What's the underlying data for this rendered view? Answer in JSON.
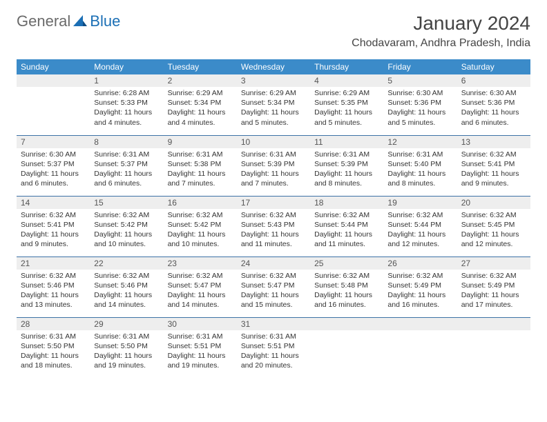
{
  "brand": {
    "name_part1": "General",
    "name_part2": "Blue"
  },
  "title": "January 2024",
  "location": "Chodavaram, Andhra Pradesh, India",
  "colors": {
    "header_bg": "#3b8bc9",
    "header_text": "#ffffff",
    "daynum_bg": "#eeeeee",
    "row_divider": "#3b71a5",
    "logo_accent": "#1b6fb5",
    "text": "#333333"
  },
  "day_headers": [
    "Sunday",
    "Monday",
    "Tuesday",
    "Wednesday",
    "Thursday",
    "Friday",
    "Saturday"
  ],
  "weeks": [
    [
      {
        "day": "",
        "lines": []
      },
      {
        "day": "1",
        "lines": [
          "Sunrise: 6:28 AM",
          "Sunset: 5:33 PM",
          "Daylight: 11 hours and 4 minutes."
        ]
      },
      {
        "day": "2",
        "lines": [
          "Sunrise: 6:29 AM",
          "Sunset: 5:34 PM",
          "Daylight: 11 hours and 4 minutes."
        ]
      },
      {
        "day": "3",
        "lines": [
          "Sunrise: 6:29 AM",
          "Sunset: 5:34 PM",
          "Daylight: 11 hours and 5 minutes."
        ]
      },
      {
        "day": "4",
        "lines": [
          "Sunrise: 6:29 AM",
          "Sunset: 5:35 PM",
          "Daylight: 11 hours and 5 minutes."
        ]
      },
      {
        "day": "5",
        "lines": [
          "Sunrise: 6:30 AM",
          "Sunset: 5:36 PM",
          "Daylight: 11 hours and 5 minutes."
        ]
      },
      {
        "day": "6",
        "lines": [
          "Sunrise: 6:30 AM",
          "Sunset: 5:36 PM",
          "Daylight: 11 hours and 6 minutes."
        ]
      }
    ],
    [
      {
        "day": "7",
        "lines": [
          "Sunrise: 6:30 AM",
          "Sunset: 5:37 PM",
          "Daylight: 11 hours and 6 minutes."
        ]
      },
      {
        "day": "8",
        "lines": [
          "Sunrise: 6:31 AM",
          "Sunset: 5:37 PM",
          "Daylight: 11 hours and 6 minutes."
        ]
      },
      {
        "day": "9",
        "lines": [
          "Sunrise: 6:31 AM",
          "Sunset: 5:38 PM",
          "Daylight: 11 hours and 7 minutes."
        ]
      },
      {
        "day": "10",
        "lines": [
          "Sunrise: 6:31 AM",
          "Sunset: 5:39 PM",
          "Daylight: 11 hours and 7 minutes."
        ]
      },
      {
        "day": "11",
        "lines": [
          "Sunrise: 6:31 AM",
          "Sunset: 5:39 PM",
          "Daylight: 11 hours and 8 minutes."
        ]
      },
      {
        "day": "12",
        "lines": [
          "Sunrise: 6:31 AM",
          "Sunset: 5:40 PM",
          "Daylight: 11 hours and 8 minutes."
        ]
      },
      {
        "day": "13",
        "lines": [
          "Sunrise: 6:32 AM",
          "Sunset: 5:41 PM",
          "Daylight: 11 hours and 9 minutes."
        ]
      }
    ],
    [
      {
        "day": "14",
        "lines": [
          "Sunrise: 6:32 AM",
          "Sunset: 5:41 PM",
          "Daylight: 11 hours and 9 minutes."
        ]
      },
      {
        "day": "15",
        "lines": [
          "Sunrise: 6:32 AM",
          "Sunset: 5:42 PM",
          "Daylight: 11 hours and 10 minutes."
        ]
      },
      {
        "day": "16",
        "lines": [
          "Sunrise: 6:32 AM",
          "Sunset: 5:42 PM",
          "Daylight: 11 hours and 10 minutes."
        ]
      },
      {
        "day": "17",
        "lines": [
          "Sunrise: 6:32 AM",
          "Sunset: 5:43 PM",
          "Daylight: 11 hours and 11 minutes."
        ]
      },
      {
        "day": "18",
        "lines": [
          "Sunrise: 6:32 AM",
          "Sunset: 5:44 PM",
          "Daylight: 11 hours and 11 minutes."
        ]
      },
      {
        "day": "19",
        "lines": [
          "Sunrise: 6:32 AM",
          "Sunset: 5:44 PM",
          "Daylight: 11 hours and 12 minutes."
        ]
      },
      {
        "day": "20",
        "lines": [
          "Sunrise: 6:32 AM",
          "Sunset: 5:45 PM",
          "Daylight: 11 hours and 12 minutes."
        ]
      }
    ],
    [
      {
        "day": "21",
        "lines": [
          "Sunrise: 6:32 AM",
          "Sunset: 5:46 PM",
          "Daylight: 11 hours and 13 minutes."
        ]
      },
      {
        "day": "22",
        "lines": [
          "Sunrise: 6:32 AM",
          "Sunset: 5:46 PM",
          "Daylight: 11 hours and 14 minutes."
        ]
      },
      {
        "day": "23",
        "lines": [
          "Sunrise: 6:32 AM",
          "Sunset: 5:47 PM",
          "Daylight: 11 hours and 14 minutes."
        ]
      },
      {
        "day": "24",
        "lines": [
          "Sunrise: 6:32 AM",
          "Sunset: 5:47 PM",
          "Daylight: 11 hours and 15 minutes."
        ]
      },
      {
        "day": "25",
        "lines": [
          "Sunrise: 6:32 AM",
          "Sunset: 5:48 PM",
          "Daylight: 11 hours and 16 minutes."
        ]
      },
      {
        "day": "26",
        "lines": [
          "Sunrise: 6:32 AM",
          "Sunset: 5:49 PM",
          "Daylight: 11 hours and 16 minutes."
        ]
      },
      {
        "day": "27",
        "lines": [
          "Sunrise: 6:32 AM",
          "Sunset: 5:49 PM",
          "Daylight: 11 hours and 17 minutes."
        ]
      }
    ],
    [
      {
        "day": "28",
        "lines": [
          "Sunrise: 6:31 AM",
          "Sunset: 5:50 PM",
          "Daylight: 11 hours and 18 minutes."
        ]
      },
      {
        "day": "29",
        "lines": [
          "Sunrise: 6:31 AM",
          "Sunset: 5:50 PM",
          "Daylight: 11 hours and 19 minutes."
        ]
      },
      {
        "day": "30",
        "lines": [
          "Sunrise: 6:31 AM",
          "Sunset: 5:51 PM",
          "Daylight: 11 hours and 19 minutes."
        ]
      },
      {
        "day": "31",
        "lines": [
          "Sunrise: 6:31 AM",
          "Sunset: 5:51 PM",
          "Daylight: 11 hours and 20 minutes."
        ]
      },
      {
        "day": "",
        "lines": []
      },
      {
        "day": "",
        "lines": []
      },
      {
        "day": "",
        "lines": []
      }
    ]
  ]
}
